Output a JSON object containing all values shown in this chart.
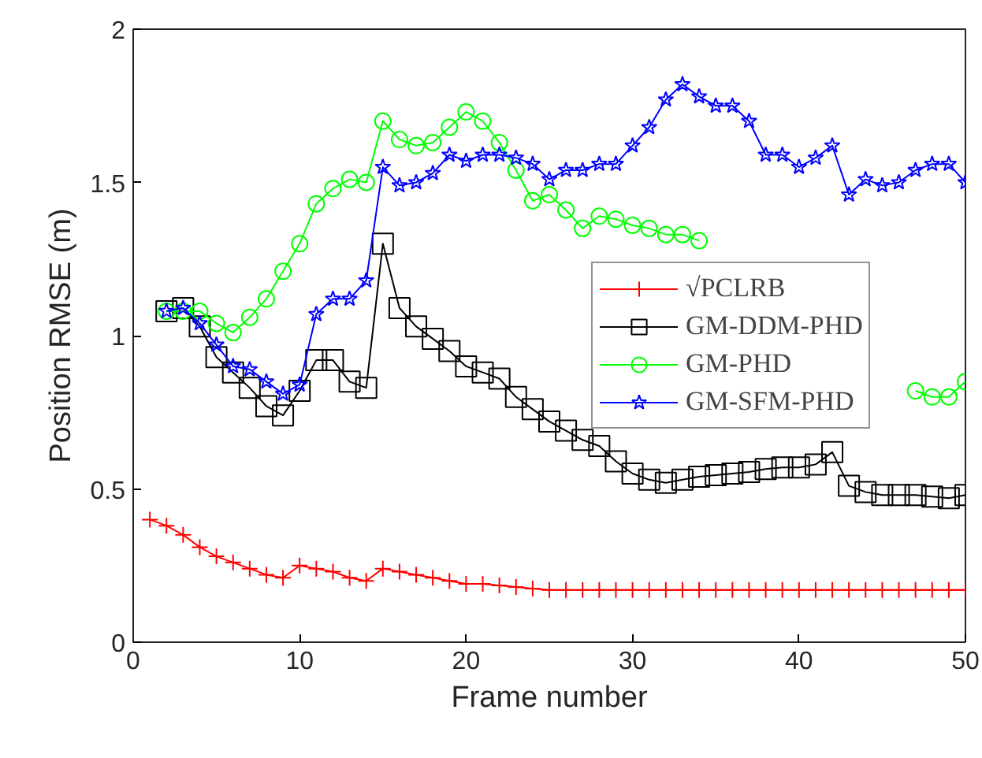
{
  "chart_data": {
    "type": "line",
    "xlabel": "Frame number",
    "ylabel": "Position RMSE (m)",
    "xlim": [
      0,
      50
    ],
    "ylim": [
      0,
      2
    ],
    "xticks": [
      0,
      10,
      20,
      30,
      40,
      50
    ],
    "yticks": [
      0,
      0.5,
      1,
      1.5,
      2
    ],
    "grid": false,
    "legend": "right",
    "line_style": "solid",
    "series": [
      {
        "name": "√PCLRB",
        "color": "#ff0000",
        "marker": "cross",
        "x": [
          1,
          2,
          3,
          4,
          5,
          6,
          7,
          8,
          9,
          10,
          11,
          12,
          13,
          14,
          15,
          16,
          17,
          18,
          19,
          20,
          21,
          22,
          23,
          24,
          25,
          26,
          27,
          28,
          29,
          30,
          31,
          32,
          33,
          34,
          35,
          36,
          37,
          38,
          39,
          40,
          41,
          42,
          43,
          44,
          45,
          46,
          47,
          48,
          49,
          50
        ],
        "values": [
          0.4,
          0.38,
          0.35,
          0.31,
          0.28,
          0.26,
          0.24,
          0.22,
          0.21,
          0.25,
          0.24,
          0.23,
          0.21,
          0.2,
          0.24,
          0.23,
          0.22,
          0.21,
          0.2,
          0.19,
          0.19,
          0.185,
          0.18,
          0.175,
          0.17,
          0.17,
          0.17,
          0.17,
          0.17,
          0.17,
          0.17,
          0.17,
          0.17,
          0.17,
          0.17,
          0.17,
          0.17,
          0.17,
          0.17,
          0.17,
          0.17,
          0.17,
          0.17,
          0.17,
          0.17,
          0.17,
          0.17,
          0.17,
          0.17,
          0.17
        ]
      },
      {
        "name": "GM-DDM-PHD",
        "color": "#000000",
        "marker": "square",
        "x": [
          2,
          3,
          4,
          5,
          6,
          7,
          8,
          9,
          10,
          11,
          12,
          13,
          14,
          15,
          16,
          17,
          18,
          19,
          20,
          21,
          22,
          23,
          24,
          25,
          26,
          27,
          28,
          29,
          30,
          31,
          32,
          33,
          34,
          35,
          36,
          37,
          38,
          39,
          40,
          41,
          42,
          43,
          44,
          45,
          46,
          47,
          48,
          49,
          50
        ],
        "values": [
          1.08,
          1.09,
          1.03,
          0.93,
          0.88,
          0.83,
          0.77,
          0.74,
          0.82,
          0.92,
          0.92,
          0.85,
          0.83,
          1.3,
          1.09,
          1.03,
          0.99,
          0.95,
          0.9,
          0.88,
          0.86,
          0.8,
          0.76,
          0.72,
          0.69,
          0.66,
          0.64,
          0.59,
          0.55,
          0.53,
          0.52,
          0.53,
          0.54,
          0.545,
          0.55,
          0.555,
          0.565,
          0.57,
          0.57,
          0.58,
          0.62,
          0.51,
          0.49,
          0.48,
          0.48,
          0.48,
          0.475,
          0.47,
          0.48
        ]
      },
      {
        "name": "GM-PHD",
        "color": "#00ff00",
        "marker": "circle",
        "x": [
          2,
          3,
          4,
          5,
          6,
          7,
          8,
          9,
          10,
          11,
          12,
          13,
          14,
          15,
          16,
          17,
          18,
          19,
          20,
          21,
          22,
          23,
          24,
          25,
          26,
          27,
          28,
          29,
          30,
          31,
          32,
          33,
          34,
          35,
          36,
          37,
          38,
          39,
          40,
          41,
          42,
          43,
          44,
          45,
          46,
          47,
          48,
          49,
          50
        ],
        "values": [
          1.08,
          1.08,
          1.08,
          1.04,
          1.01,
          1.06,
          1.12,
          1.21,
          1.3,
          1.43,
          1.48,
          1.51,
          1.5,
          1.7,
          1.64,
          1.62,
          1.63,
          1.68,
          1.73,
          1.7,
          1.63,
          1.54,
          1.44,
          1.46,
          1.41,
          1.35,
          1.39,
          1.38,
          1.36,
          1.35,
          1.33,
          1.33,
          1.31,
          null,
          null,
          null,
          null,
          null,
          null,
          null,
          null,
          null,
          null,
          null,
          null,
          0.82,
          0.8,
          0.8,
          0.85
        ]
      },
      {
        "name": "GM-SFM-PHD",
        "color": "#0000ff",
        "marker": "star",
        "x": [
          2,
          3,
          4,
          5,
          6,
          7,
          8,
          9,
          10,
          11,
          12,
          13,
          14,
          15,
          16,
          17,
          18,
          19,
          20,
          21,
          22,
          23,
          24,
          25,
          26,
          27,
          28,
          29,
          30,
          31,
          32,
          33,
          34,
          35,
          36,
          37,
          38,
          39,
          40,
          41,
          42,
          43,
          44,
          45,
          46,
          47,
          48,
          49,
          50
        ],
        "values": [
          1.08,
          1.09,
          1.04,
          0.97,
          0.9,
          0.89,
          0.85,
          0.81,
          0.84,
          1.07,
          1.12,
          1.12,
          1.18,
          1.55,
          1.49,
          1.5,
          1.53,
          1.59,
          1.57,
          1.59,
          1.59,
          1.58,
          1.56,
          1.51,
          1.54,
          1.54,
          1.56,
          1.56,
          1.62,
          1.68,
          1.77,
          1.82,
          1.78,
          1.75,
          1.75,
          1.7,
          1.59,
          1.59,
          1.55,
          1.58,
          1.62,
          1.46,
          1.51,
          1.49,
          1.5,
          1.54,
          1.56,
          1.56,
          1.5
        ]
      }
    ]
  }
}
